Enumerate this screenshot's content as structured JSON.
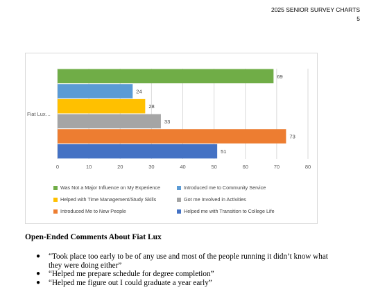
{
  "header": {
    "line1": "2025 SENIOR SURVEY CHARTS",
    "line2": "5"
  },
  "chart_data": {
    "type": "bar",
    "orientation": "horizontal",
    "category_label": "Fiat Lux…",
    "xlim": [
      0,
      80
    ],
    "xticks": [
      "0",
      "10",
      "20",
      "30",
      "40",
      "50",
      "60",
      "70",
      "80"
    ],
    "grid": true,
    "legend_position": "bottom",
    "series": [
      {
        "name": "Was Not a Major Influence on My Experience",
        "value": 69,
        "label": "69",
        "color": "#70ad47"
      },
      {
        "name": "Introduced me to Community Service",
        "value": 24,
        "label": "24",
        "color": "#5b9bd5"
      },
      {
        "name": "Helped with Time Management/Study Skills",
        "value": 28,
        "label": "28",
        "color": "#ffc000"
      },
      {
        "name": "Got me Involved in Activities",
        "value": 33,
        "label": "33",
        "color": "#a5a5a5"
      },
      {
        "name": "Introduced Me to New People",
        "value": 73,
        "label": "73",
        "color": "#ed7d31"
      },
      {
        "name": "Helped me with Transition to College Life",
        "value": 51,
        "label": "51",
        "color": "#4472c4"
      }
    ]
  },
  "section_title": "Open-Ended Comments About Fiat Lux",
  "comments": [
    "“Took place too early to be of any use and most of the people running it didn’t know what they were doing either”",
    "“Helped me prepare schedule for degree completion”",
    "“Helped me figure out I could graduate a year early”"
  ]
}
